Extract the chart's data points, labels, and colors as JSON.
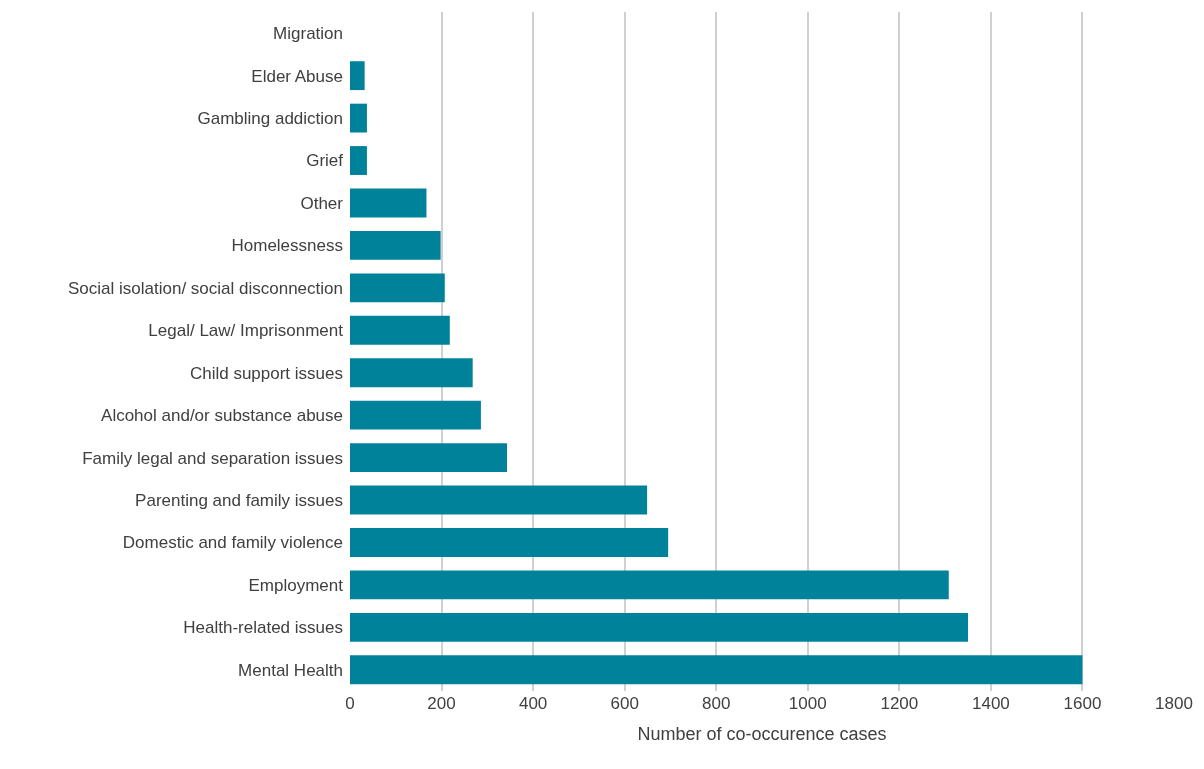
{
  "chart_data": {
    "type": "bar",
    "orientation": "horizontal",
    "xlabel": "Number of co-occurence cases",
    "categories": [
      "Migration",
      "Elder Abuse",
      "Gambling addiction",
      "Grief",
      "Other",
      "Homelessness",
      "Social isolation/ social disconnection",
      "Legal/ Law/ Imprisonment",
      "Child support issues",
      "Alcohol and/or substance abuse",
      "Family legal and separation issues",
      "Parenting and family issues",
      "Domestic and family violence",
      "Employment",
      "Health-related issues",
      "Mental Health"
    ],
    "values": [
      0,
      32,
      37,
      37,
      167,
      198,
      207,
      218,
      268,
      286,
      343,
      649,
      695,
      1308,
      1350,
      1600
    ],
    "color": "#00829b",
    "xlim": [
      0,
      1800
    ],
    "xticks": [
      0,
      200,
      400,
      600,
      800,
      1000,
      1200,
      1400,
      1600,
      1800
    ],
    "grid": "x"
  }
}
